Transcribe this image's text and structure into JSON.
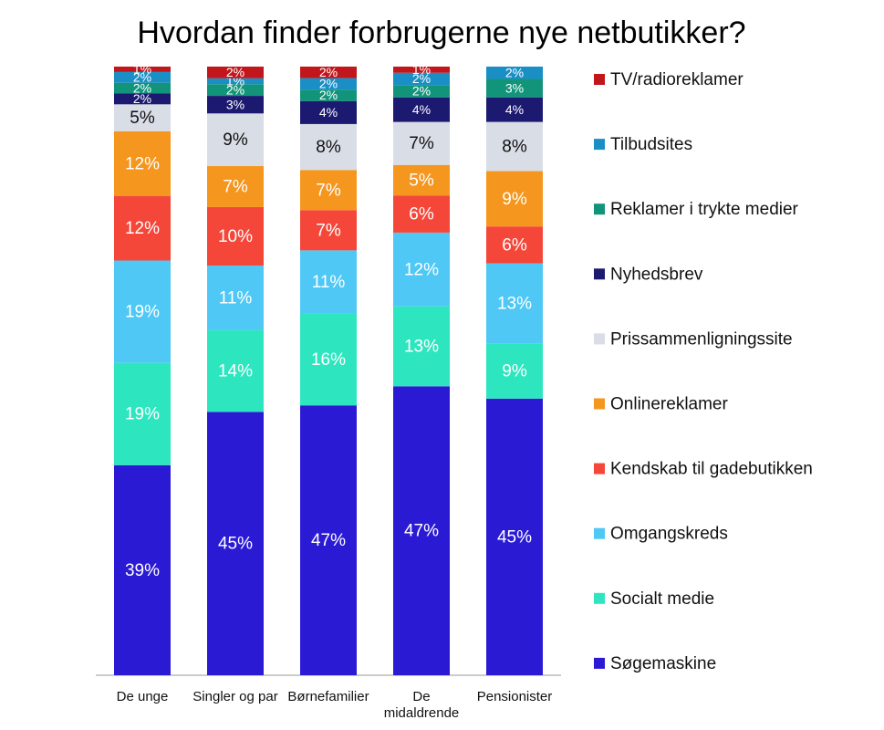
{
  "chart_data": {
    "type": "stacked_bar",
    "title": "Hvordan finder forbrugerne nye netbutikker?",
    "categories": [
      "De unge",
      "Singler og par",
      "Børnefamilier",
      "De midaldrende",
      "Pensionister"
    ],
    "series": [
      {
        "name": "Søgemaskine",
        "color": "#2b1ad4",
        "values": [
          39,
          45,
          47,
          47,
          45
        ],
        "value_labels": [
          "39%",
          "45%",
          "47%",
          "47%",
          "45%"
        ]
      },
      {
        "name": "Socialt medie",
        "color": "#2de6c0",
        "values": [
          19,
          14,
          16,
          13,
          9
        ],
        "value_labels": [
          "19%",
          "14%",
          "16%",
          "13%",
          "9%"
        ]
      },
      {
        "name": "Omgangskreds",
        "color": "#4fc8f5",
        "values": [
          19,
          11,
          11,
          12,
          13
        ],
        "value_labels": [
          "19%",
          "11%",
          "11%",
          "12%",
          "13%"
        ]
      },
      {
        "name": "Kendskab til gadebutikken",
        "color": "#f4473a",
        "values": [
          12,
          10,
          7,
          6,
          6
        ],
        "value_labels": [
          "12%",
          "10%",
          "7%",
          "6%",
          "6%"
        ]
      },
      {
        "name": "Onlinereklamer",
        "color": "#f5961e",
        "values": [
          12,
          7,
          7,
          5,
          9
        ],
        "value_labels": [
          "12%",
          "7%",
          "7%",
          "5%",
          "9%"
        ]
      },
      {
        "name": "Prissammenligningssite",
        "color": "#d9dde6",
        "values": [
          5,
          9,
          8,
          7,
          8
        ],
        "value_labels": [
          "5%",
          "9%",
          "8%",
          "7%",
          "8%"
        ]
      },
      {
        "name": "Nyhedsbrev",
        "color": "#1c1a70",
        "values": [
          2,
          3,
          4,
          4,
          4
        ],
        "value_labels": [
          "2%",
          "3%",
          "4%",
          "4%",
          "4%"
        ]
      },
      {
        "name": "Reklamer i trykte medier",
        "color": "#12947a",
        "values": [
          2,
          2,
          2,
          2,
          3
        ],
        "value_labels": [
          "2%",
          "2%",
          "2%",
          "2%",
          "3%"
        ]
      },
      {
        "name": "Tilbudsites",
        "color": "#1a8fc5",
        "values": [
          2,
          1,
          2,
          2,
          2
        ],
        "value_labels": [
          "2%",
          "1%",
          "2%",
          "2%",
          "2%"
        ]
      },
      {
        "name": "TV/radioreklamer",
        "color": "#c0161c",
        "values": [
          1,
          2,
          2,
          1,
          0
        ],
        "value_labels": [
          "1%",
          "2%",
          "2%",
          "1%",
          null
        ]
      }
    ]
  }
}
